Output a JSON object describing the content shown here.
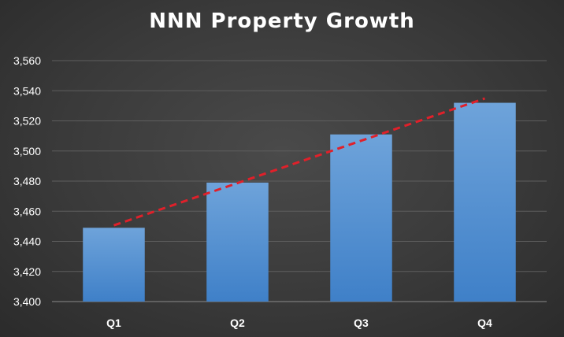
{
  "chart_data": {
    "type": "bar",
    "title": "NNN Property Growth",
    "xlabel": "",
    "ylabel": "",
    "categories": [
      "Q1",
      "Q2",
      "Q3",
      "Q4"
    ],
    "values": [
      3449,
      3479,
      3511,
      3532
    ],
    "ylim": [
      3400,
      3560
    ],
    "yticks": [
      "3,400",
      "3,420",
      "3,440",
      "3,460",
      "3,480",
      "3,500",
      "3,520",
      "3,540",
      "3,560"
    ],
    "grid": true,
    "legend": "none",
    "trendline": {
      "type": "linear",
      "style": "dashed",
      "color": "#e0202a"
    },
    "colors": {
      "bar_top": "#6ea3da",
      "bar_bottom": "#3f80c8",
      "grid": "#5e5e5e",
      "text": "#ffffff"
    }
  }
}
